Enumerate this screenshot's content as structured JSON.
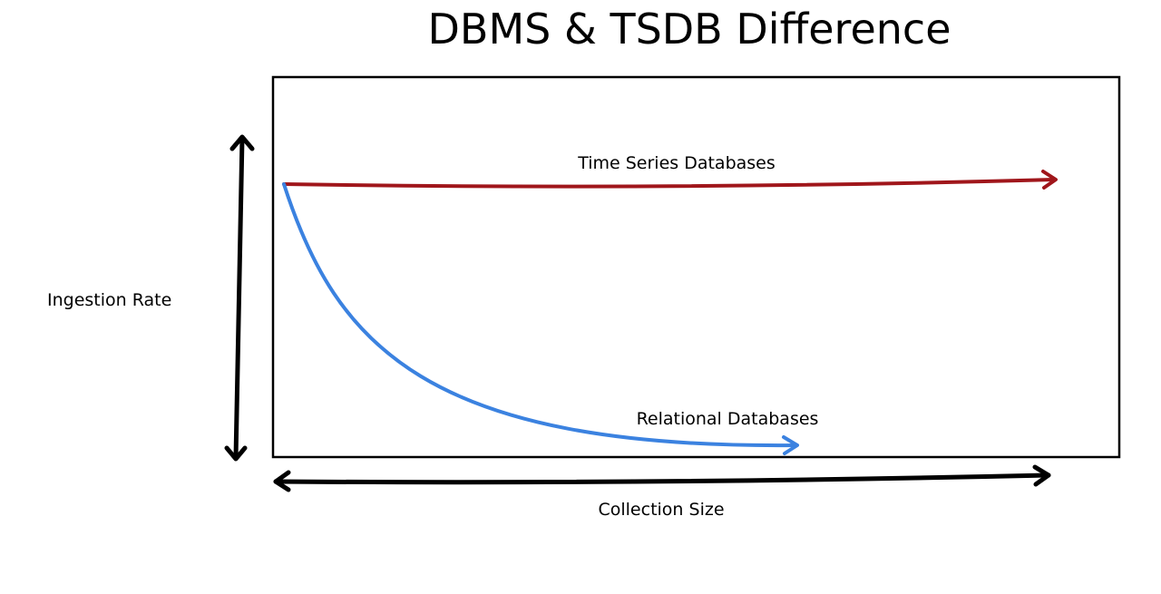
{
  "title": "DBMS & TSDB Difference",
  "axes": {
    "y_label": "Ingestion Rate",
    "x_label": "Collection Size"
  },
  "curves": {
    "tsdb": {
      "label": "Time Series Databases",
      "color": "#a0161b"
    },
    "relational": {
      "label": "Relational Databases",
      "color": "#3b82e0"
    }
  },
  "frame_color": "#000000"
}
